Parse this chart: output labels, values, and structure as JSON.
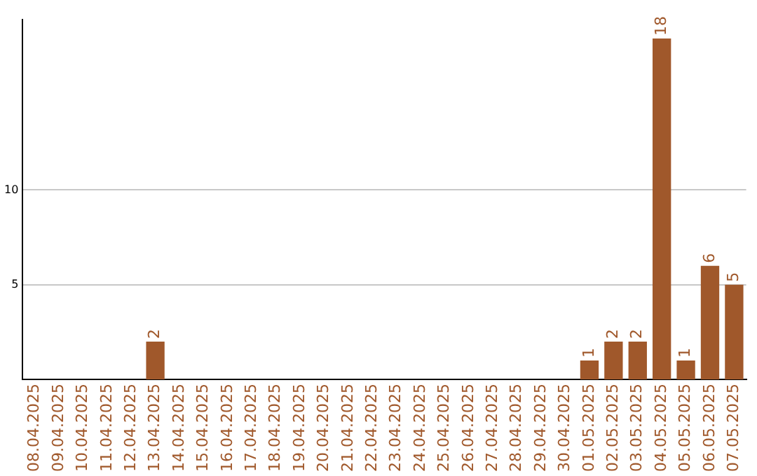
{
  "chart_data": {
    "type": "bar",
    "categories": [
      "08.04.2025",
      "09.04.2025",
      "10.04.2025",
      "11.04.2025",
      "12.04.2025",
      "13.04.2025",
      "14.04.2025",
      "15.04.2025",
      "16.04.2025",
      "17.04.2025",
      "18.04.2025",
      "19.04.2025",
      "20.04.2025",
      "21.04.2025",
      "22.04.2025",
      "23.04.2025",
      "24.04.2025",
      "25.04.2025",
      "26.04.2025",
      "27.04.2025",
      "28.04.2025",
      "29.04.2025",
      "30.04.2025",
      "01.05.2025",
      "02.05.2025",
      "03.05.2025",
      "04.05.2025",
      "05.05.2025",
      "06.05.2025",
      "07.05.2025"
    ],
    "values": [
      0,
      0,
      0,
      0,
      0,
      2,
      0,
      0,
      0,
      0,
      0,
      0,
      0,
      0,
      0,
      0,
      0,
      0,
      0,
      0,
      0,
      0,
      0,
      1,
      2,
      2,
      18,
      1,
      6,
      5
    ],
    "value_labels": [
      null,
      null,
      null,
      null,
      null,
      "2",
      null,
      null,
      null,
      null,
      null,
      null,
      null,
      null,
      null,
      null,
      null,
      null,
      null,
      null,
      null,
      null,
      null,
      "1",
      "2",
      "2",
      "18",
      "1",
      "6",
      "5"
    ],
    "color": "#a0582b",
    "ylim": [
      0,
      19
    ],
    "yticks": [
      5,
      10
    ],
    "grid": "y",
    "legend": false
  }
}
